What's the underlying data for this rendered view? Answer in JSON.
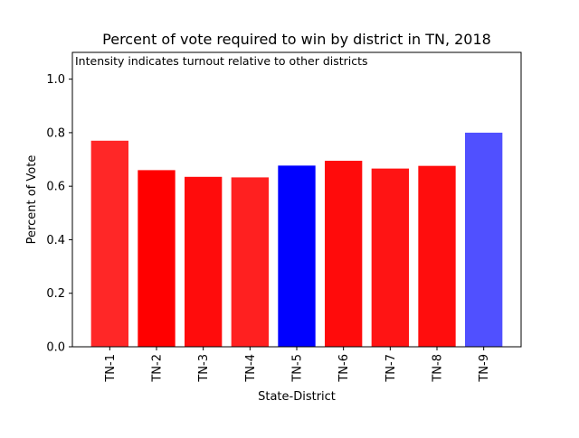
{
  "chart_data": {
    "type": "bar",
    "title": "Percent of vote required to win by district in TN, 2018",
    "annotation": "Intensity indicates turnout relative to other districts",
    "xlabel": "State-District",
    "ylabel": "Percent of Vote",
    "ylim": [
      0,
      1.1
    ],
    "yticks": [
      0.0,
      0.2,
      0.4,
      0.6,
      0.8,
      1.0
    ],
    "ytick_labels": [
      "0.0",
      "0.2",
      "0.4",
      "0.6",
      "0.8",
      "1.0"
    ],
    "categories": [
      "TN-1",
      "TN-2",
      "TN-3",
      "TN-4",
      "TN-5",
      "TN-6",
      "TN-7",
      "TN-8",
      "TN-9"
    ],
    "values": [
      0.77,
      0.66,
      0.635,
      0.633,
      0.677,
      0.695,
      0.666,
      0.676,
      0.8
    ],
    "colors": [
      "#ff2727",
      "#ff0000",
      "#ff0c0c",
      "#ff2020",
      "#0000ff",
      "#ff0b0b",
      "#ff1414",
      "#ff0d0d",
      "#5050ff"
    ],
    "grid": false,
    "legend": "none"
  }
}
